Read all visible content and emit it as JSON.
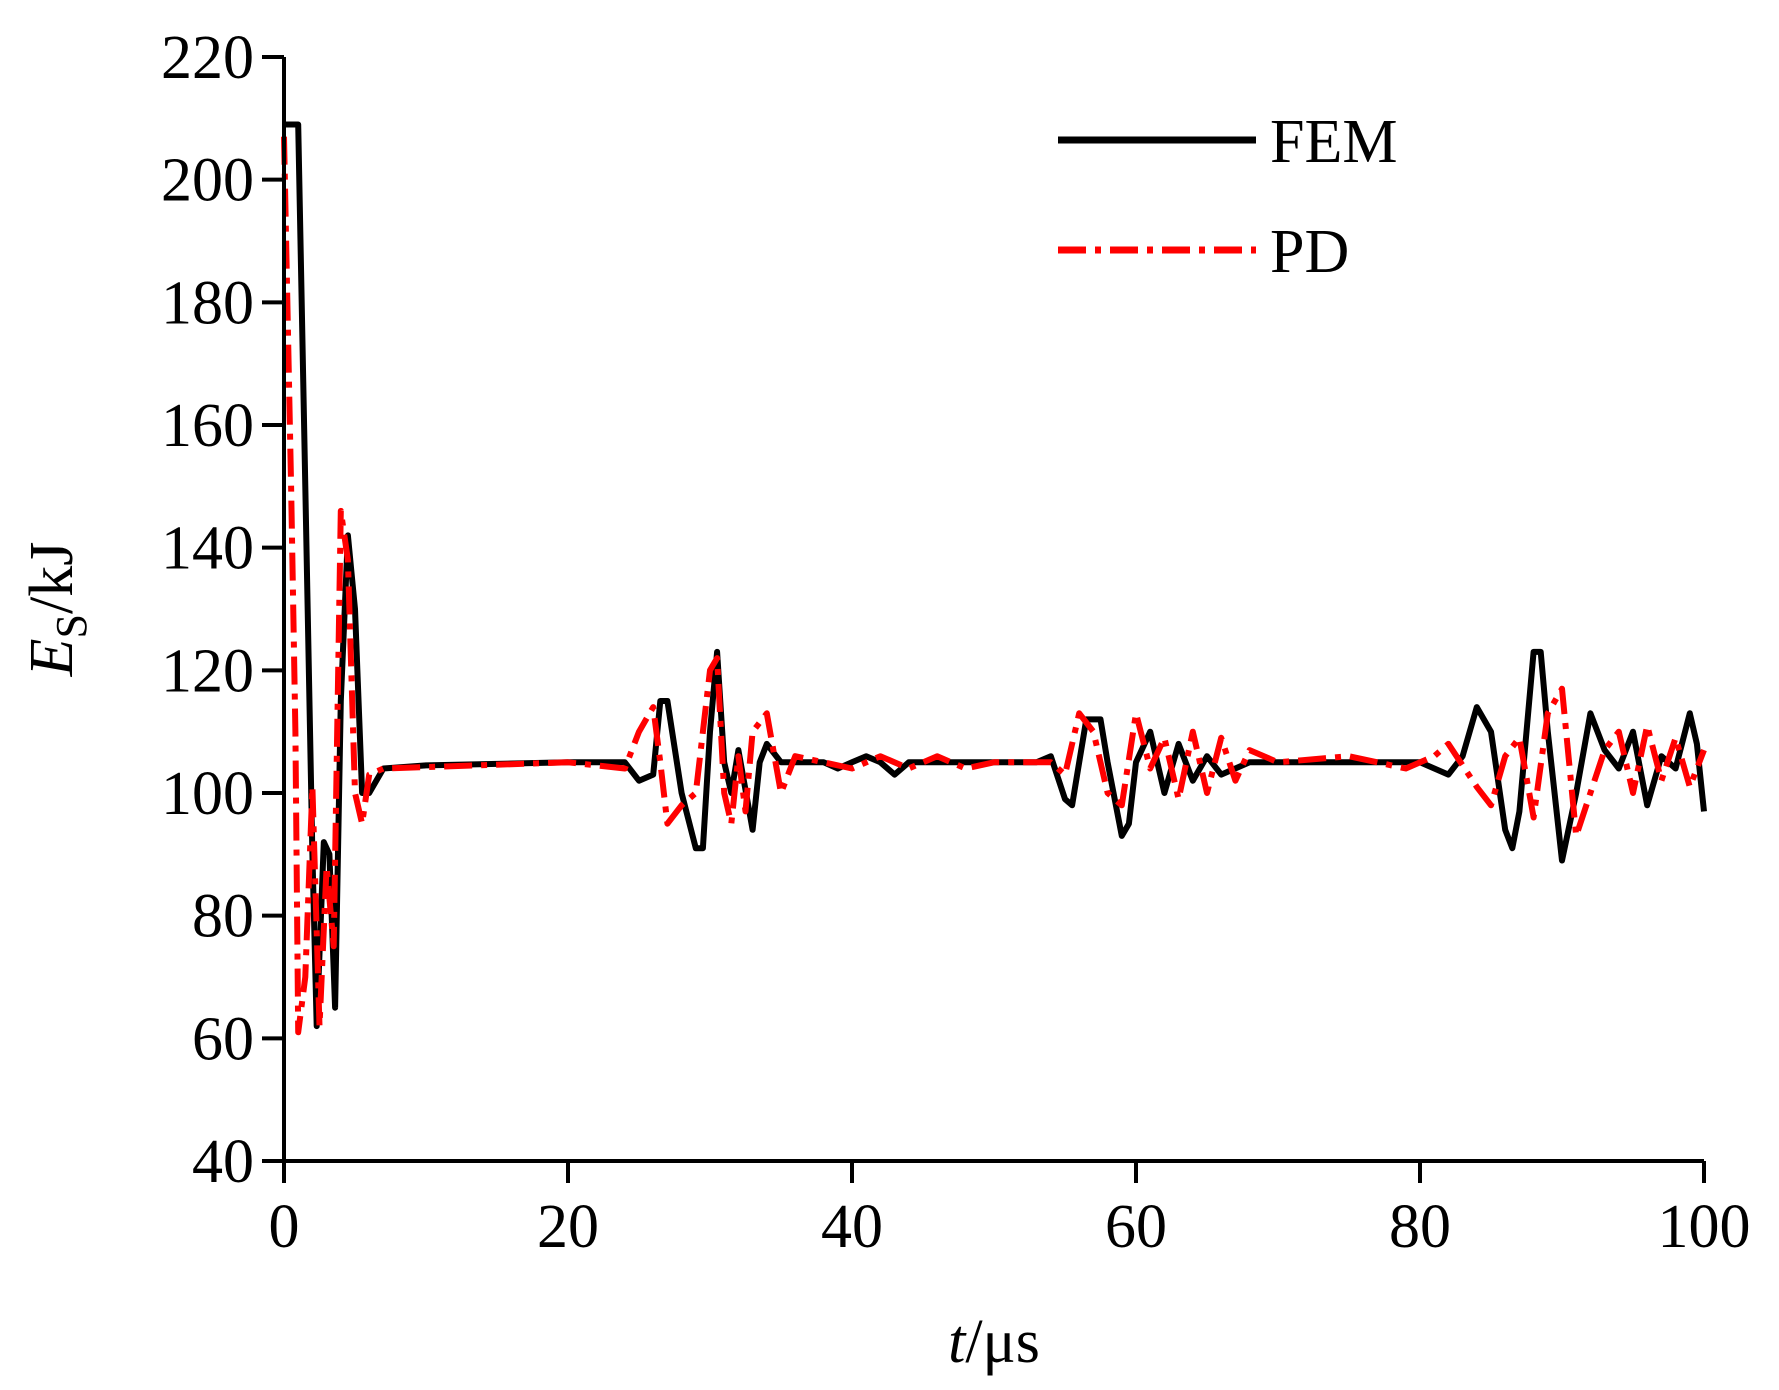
{
  "chart_data": {
    "type": "line",
    "x_label": [
      "t",
      "/μs"
    ],
    "y_label": [
      "E",
      "S",
      "/kJ"
    ],
    "xlim": [
      0,
      100
    ],
    "xticks": [
      0,
      20,
      40,
      60,
      80,
      100
    ],
    "ylim": [
      40,
      220
    ],
    "yticks": [
      40,
      60,
      80,
      100,
      120,
      140,
      160,
      180,
      200,
      220
    ],
    "legend": "upper right",
    "series": [
      {
        "name": "FEM",
        "color": "#000000",
        "dash": "solid",
        "x": [
          0,
          0.5,
          1,
          1.5,
          2,
          2.3,
          2.8,
          3.2,
          3.6,
          4,
          4.5,
          5,
          5.5,
          6,
          7,
          10,
          20,
          24,
          25,
          26,
          26.5,
          27,
          28,
          29,
          29.5,
          30,
          30.5,
          31,
          31.5,
          32,
          33,
          33.5,
          34,
          35,
          38,
          39,
          40,
          41,
          42,
          43,
          44,
          50,
          53,
          54,
          55,
          55.5,
          56,
          56.5,
          57.5,
          58,
          59,
          59.5,
          60,
          61,
          62,
          63,
          64,
          65,
          66,
          68,
          75,
          80,
          82,
          83,
          84,
          85,
          86,
          86.5,
          87,
          88,
          88.5,
          89,
          90,
          91,
          92,
          93,
          94,
          95,
          96,
          97,
          98,
          99,
          99.5,
          100
        ],
        "values": [
          209,
          209,
          209,
          150,
          90,
          62,
          92,
          90,
          65,
          115,
          142,
          130,
          100,
          100,
          104,
          104.5,
          105,
          105,
          102,
          103,
          115,
          115,
          100,
          91,
          91,
          110,
          123,
          105,
          100,
          107,
          94,
          105,
          108,
          105,
          105,
          104,
          105,
          106,
          105,
          103,
          105,
          105,
          105,
          106,
          99,
          98,
          105,
          112,
          112,
          105,
          93,
          95,
          105,
          110,
          100,
          108,
          102,
          106,
          103,
          105,
          105,
          105,
          103,
          106,
          114,
          110,
          94,
          91,
          97,
          123,
          123,
          110,
          89,
          100,
          113,
          107,
          104,
          110,
          98,
          106,
          104,
          113,
          108,
          97
        ]
      },
      {
        "name": "PD",
        "color": "#ff0000",
        "dash": "dashdot",
        "x": [
          0,
          0.5,
          0.8,
          1,
          1.5,
          2,
          2.5,
          3,
          3.5,
          4,
          4.5,
          5,
          5.5,
          6,
          7,
          20,
          24,
          25,
          26,
          26.5,
          27,
          28,
          29,
          30,
          30.5,
          31,
          31.5,
          32,
          32.5,
          33,
          34,
          35,
          36,
          38,
          40,
          42,
          44,
          46,
          48,
          50,
          54,
          55,
          56,
          57,
          58,
          59,
          60,
          61,
          62,
          63,
          64,
          65,
          66,
          67,
          68,
          70,
          75,
          79,
          81,
          82,
          84,
          85,
          86,
          87,
          88,
          89,
          90,
          91,
          92,
          93,
          94,
          95,
          96,
          97,
          98,
          99,
          100
        ],
        "values": [
          207,
          150,
          110,
          61,
          70,
          101,
          62,
          88,
          75,
          146,
          138,
          100,
          95,
          103,
          104,
          105,
          104,
          110,
          114,
          105,
          95,
          98,
          100,
          120,
          122,
          100,
          95,
          106,
          97,
          110,
          113,
          100,
          106,
          105,
          104,
          106,
          104,
          106,
          104,
          105,
          105,
          103,
          113,
          110,
          100,
          98,
          113,
          104,
          109,
          99,
          110,
          100,
          109,
          102,
          107,
          105,
          106,
          104,
          106,
          108,
          101,
          98,
          106,
          109,
          96,
          113,
          117,
          93,
          100,
          107,
          110,
          100,
          111,
          102,
          109,
          101,
          107
        ]
      }
    ]
  }
}
